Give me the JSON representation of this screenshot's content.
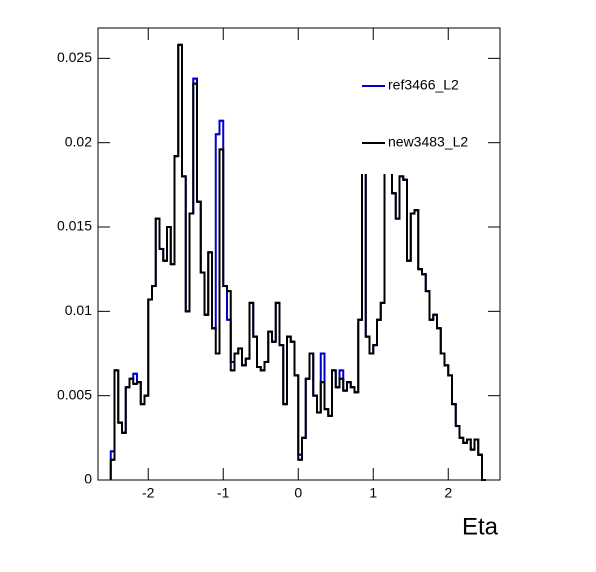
{
  "chart_data": {
    "type": "histogram",
    "x_label": "Eta",
    "bins": [
      -2.5,
      -2.45,
      -2.4,
      -2.35,
      -2.3,
      -2.25,
      -2.2,
      -2.15,
      -2.1,
      -2.05,
      -2.0,
      -1.95,
      -1.9,
      -1.85,
      -1.8,
      -1.75,
      -1.7,
      -1.65,
      -1.6,
      -1.55,
      -1.5,
      -1.45,
      -1.4,
      -1.35,
      -1.3,
      -1.25,
      -1.2,
      -1.15,
      -1.1,
      -1.05,
      -1.0,
      -0.95,
      -0.9,
      -0.85,
      -0.8,
      -0.75,
      -0.7,
      -0.65,
      -0.6,
      -0.55,
      -0.5,
      -0.45,
      -0.4,
      -0.35,
      -0.3,
      -0.25,
      -0.2,
      -0.15,
      -0.1,
      -0.05,
      0,
      0.05,
      0.1,
      0.15,
      0.2,
      0.25,
      0.3,
      0.35,
      0.4,
      0.45,
      0.5,
      0.55,
      0.6,
      0.65,
      0.7,
      0.75,
      0.8,
      0.85,
      0.9,
      0.95,
      1.0,
      1.05,
      1.1,
      1.15,
      1.2,
      1.25,
      1.3,
      1.35,
      1.4,
      1.45,
      1.5,
      1.55,
      1.6,
      1.65,
      1.7,
      1.75,
      1.8,
      1.85,
      1.9,
      1.95,
      2.0,
      2.05,
      2.1,
      2.15,
      2.2,
      2.25,
      2.3,
      2.35,
      2.4,
      2.45,
      2.5
    ],
    "series": [
      {
        "name": "ref3466_L2",
        "color": "#0000cc",
        "values": [
          0.0017,
          0.0065,
          0.0034,
          0.0028,
          0.0055,
          0.006,
          0.0063,
          0.0058,
          0.0045,
          0.005,
          0.0107,
          0.0115,
          0.0155,
          0.0137,
          0.013,
          0.015,
          0.0128,
          0.0192,
          0.0258,
          0.018,
          0.01,
          0.0158,
          0.0238,
          0.0165,
          0.0123,
          0.0098,
          0.0135,
          0.009,
          0.0205,
          0.0213,
          0.0115,
          0.0095,
          0.007,
          0.0075,
          0.0078,
          0.0068,
          0.0072,
          0.0105,
          0.0085,
          0.0067,
          0.0065,
          0.007,
          0.0088,
          0.0082,
          0.0105,
          0.008,
          0.0045,
          0.0085,
          0.0082,
          0.0062,
          0.0015,
          0.0025,
          0.006,
          0.0075,
          0.005,
          0.004,
          0.0075,
          0.0042,
          0.0038,
          0.0065,
          0.0055,
          0.0065,
          0.0053,
          0.0058,
          0.0055,
          0.0052,
          0.0095,
          0.0185,
          0.0085,
          0.0075,
          0.008,
          0.0095,
          0.0105,
          0.0185,
          0.0192,
          0.017,
          0.0155,
          0.018,
          0.0178,
          0.013,
          0.0158,
          0.016,
          0.0125,
          0.0122,
          0.0112,
          0.0095,
          0.0098,
          0.009,
          0.0075,
          0.0068,
          0.0062,
          0.0045,
          0.0032,
          0.0025,
          0.0022,
          0.0024,
          0.0018,
          0.0024,
          0.0015,
          0
        ]
      },
      {
        "name": "new3483_L2",
        "color": "#000000",
        "values": [
          0.0012,
          0.0065,
          0.0034,
          0.0028,
          0.0055,
          0.006,
          0.0057,
          0.0058,
          0.0045,
          0.005,
          0.0107,
          0.0115,
          0.0155,
          0.0137,
          0.013,
          0.015,
          0.0128,
          0.0192,
          0.0258,
          0.018,
          0.01,
          0.0158,
          0.0235,
          0.0165,
          0.0123,
          0.0098,
          0.0135,
          0.009,
          0.0075,
          0.0196,
          0.0115,
          0.0112,
          0.0065,
          0.0075,
          0.0078,
          0.0068,
          0.0072,
          0.0105,
          0.0085,
          0.0067,
          0.0065,
          0.007,
          0.0088,
          0.0082,
          0.0105,
          0.008,
          0.0045,
          0.0085,
          0.0082,
          0.0062,
          0.0012,
          0.0025,
          0.006,
          0.0075,
          0.005,
          0.004,
          0.0058,
          0.0042,
          0.0038,
          0.0065,
          0.0055,
          0.006,
          0.0053,
          0.0058,
          0.0055,
          0.0052,
          0.0095,
          0.0185,
          0.0085,
          0.0075,
          0.008,
          0.0095,
          0.0105,
          0.0185,
          0.0192,
          0.017,
          0.0155,
          0.018,
          0.0178,
          0.013,
          0.0158,
          0.016,
          0.0125,
          0.0122,
          0.0112,
          0.0095,
          0.0098,
          0.009,
          0.0075,
          0.0068,
          0.0062,
          0.0045,
          0.0032,
          0.0025,
          0.0022,
          0.0024,
          0.0018,
          0.0024,
          0.0015,
          0
        ]
      }
    ],
    "xlim": [
      -2.67,
      2.69
    ],
    "xticks": [
      -2,
      -1,
      0,
      1,
      2
    ],
    "ylim": [
      0,
      0.0268
    ],
    "yticks": [
      0,
      0.005,
      0.01,
      0.015,
      0.02,
      0.025
    ]
  }
}
